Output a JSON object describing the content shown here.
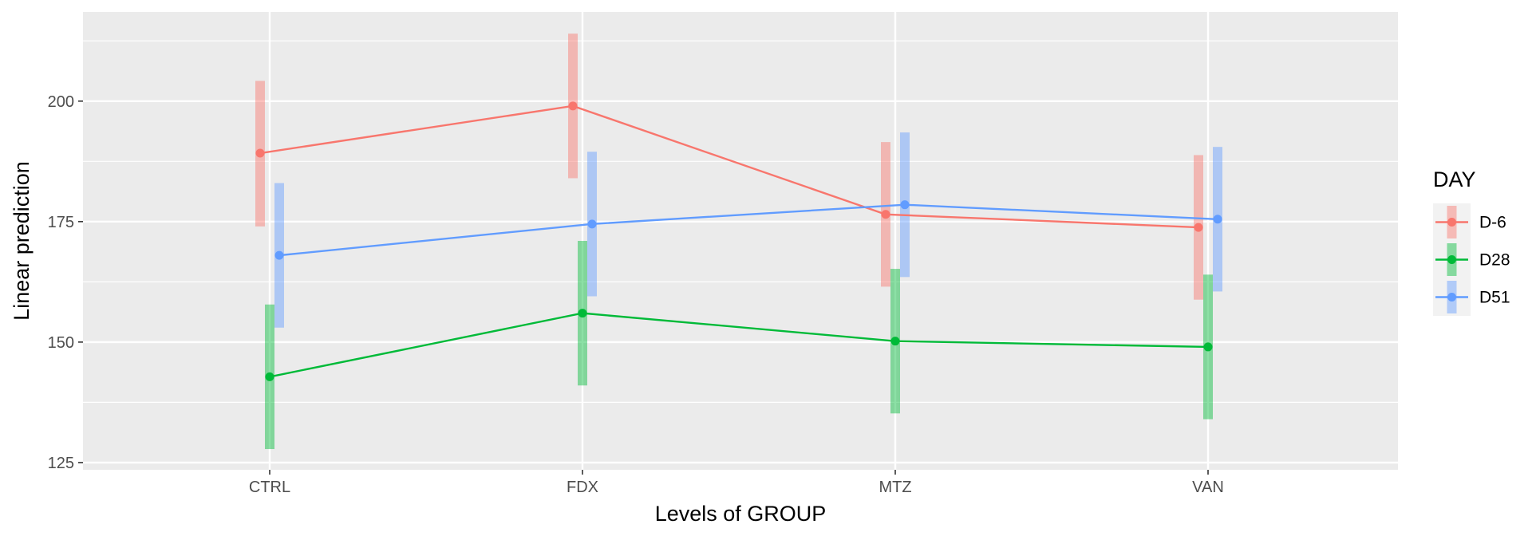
{
  "chart_data": {
    "type": "line",
    "xlabel": "Levels of GROUP",
    "ylabel": "Linear prediction",
    "categories": [
      "CTRL",
      "FDX",
      "MTZ",
      "VAN"
    ],
    "ylim": [
      123.5,
      218.5
    ],
    "yticks": [
      125,
      150,
      175,
      200
    ],
    "grid": true,
    "legend": {
      "title": "DAY",
      "position": "right"
    },
    "series": [
      {
        "name": "D-6",
        "color": "#F8766D",
        "values": [
          189.2,
          199.0,
          176.5,
          173.8
        ],
        "lower": [
          174.0,
          184.0,
          161.5,
          158.8
        ],
        "upper": [
          204.2,
          214.0,
          191.5,
          188.8
        ]
      },
      {
        "name": "D28",
        "color": "#00BA38",
        "values": [
          142.8,
          156.0,
          150.2,
          149.0
        ],
        "lower": [
          127.8,
          141.0,
          135.2,
          134.0
        ],
        "upper": [
          157.8,
          171.0,
          165.2,
          164.0
        ]
      },
      {
        "name": "D51",
        "color": "#619CFF",
        "values": [
          168.0,
          174.5,
          178.5,
          175.5
        ],
        "lower": [
          153.0,
          159.5,
          163.5,
          160.5
        ],
        "upper": [
          183.0,
          189.5,
          193.5,
          190.5
        ]
      }
    ]
  }
}
